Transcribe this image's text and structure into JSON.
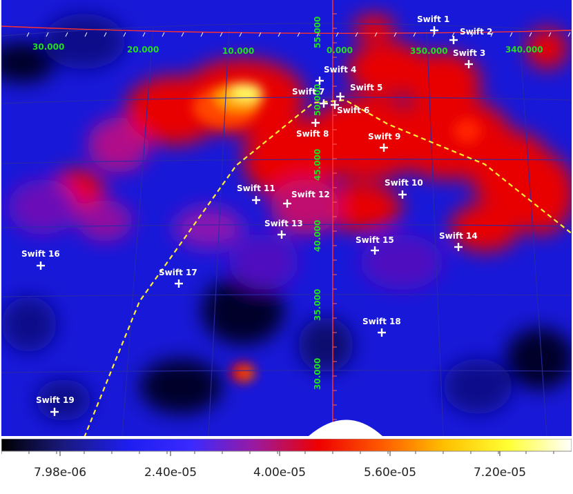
{
  "colorbar": {
    "colors": [
      "#000000",
      "#1a1a80",
      "#1e1ef0",
      "#3a2aff",
      "#9a1aa0",
      "#ee0000",
      "#ff5a00",
      "#ffc000",
      "#ffff33",
      "#ffffff"
    ],
    "ticks": [
      "7.98e-06",
      "2.40e-05",
      "4.00e-05",
      "5.60e-05",
      "7.20e-05"
    ]
  },
  "grid": {
    "longitude_labels": [
      "30.000",
      "20.000",
      "10.000",
      "0.000",
      "350.000",
      "340.000"
    ],
    "latitude_labels": [
      "55.000",
      "50.000",
      "45.000",
      "40.000",
      "35.000",
      "30.000"
    ],
    "line_color": "#2a2aa8",
    "label_color": "#22dd22",
    "boundary_color": "#ff3030",
    "contour_color": "#ffee33"
  },
  "sources": [
    {
      "label": "Swift 1"
    },
    {
      "label": "Swift 2"
    },
    {
      "label": "Swift 3"
    },
    {
      "label": "Swift 4"
    },
    {
      "label": "Swift 5"
    },
    {
      "label": "Swift 6"
    },
    {
      "label": "Swift 7"
    },
    {
      "label": "Swift 8"
    },
    {
      "label": "Swift 9"
    },
    {
      "label": "Swift 10"
    },
    {
      "label": "Swift 11"
    },
    {
      "label": "Swift 12"
    },
    {
      "label": "Swift 13"
    },
    {
      "label": "Swift 14"
    },
    {
      "label": "Swift 15"
    },
    {
      "label": "Swift 16"
    },
    {
      "label": "Swift 17"
    },
    {
      "label": "Swift 18"
    },
    {
      "label": "Swift 19"
    }
  ]
}
